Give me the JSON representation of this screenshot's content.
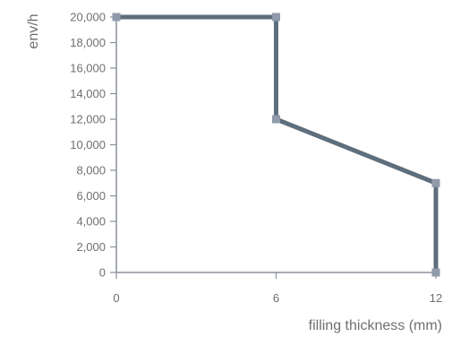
{
  "chart_data": {
    "type": "line",
    "xlabel": "filling thickness (mm)",
    "ylabel": "env/h",
    "xlim": [
      0,
      12
    ],
    "ylim": [
      0,
      20000
    ],
    "x_ticks": [
      0,
      6,
      12
    ],
    "x_tick_labels": [
      "0",
      "6",
      "12"
    ],
    "y_ticks": [
      0,
      2000,
      4000,
      6000,
      8000,
      10000,
      12000,
      14000,
      16000,
      18000,
      20000
    ],
    "y_tick_labels": [
      "0",
      "2,000",
      "4,000",
      "6,000",
      "8,000",
      "10,000",
      "12,000",
      "14,000",
      "16,000",
      "18,000",
      "20,000"
    ],
    "grid": false,
    "series": [
      {
        "x": [
          0,
          6,
          6,
          12,
          12
        ],
        "values": [
          20000,
          20000,
          12000,
          7000,
          0
        ],
        "color": "#5f6e7d",
        "marker_color": "#8f9aaa"
      }
    ],
    "axis_color": "#8a9099"
  }
}
